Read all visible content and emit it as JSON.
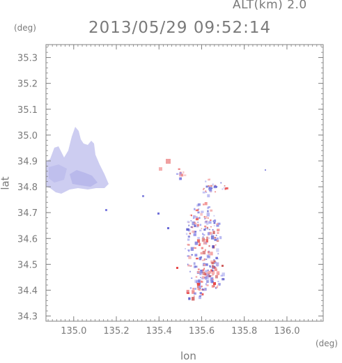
{
  "header": {
    "altitude_label": "ALT(km) 2.0",
    "timestamp": "2013/05/29 09:52:14"
  },
  "chart_data": {
    "type": "heatmap",
    "xlabel": "lon",
    "ylabel": "lat",
    "x_unit": "(deg)",
    "y_unit": "(deg)",
    "xlim": [
      134.87,
      136.17
    ],
    "ylim": [
      34.28,
      35.35
    ],
    "x_ticks": [
      "135.0",
      "135.2",
      "135.4",
      "135.6",
      "135.8",
      "136.0"
    ],
    "y_ticks": [
      "34.3",
      "34.4",
      "34.5",
      "34.6",
      "34.7",
      "34.8",
      "34.9",
      "35.0",
      "35.1",
      "35.2",
      "35.3"
    ],
    "grid": false,
    "colors": {
      "axis": "#808080",
      "negative": "#6a6ad6",
      "positive": "#e85050",
      "plume": "#c8c8f0"
    }
  }
}
